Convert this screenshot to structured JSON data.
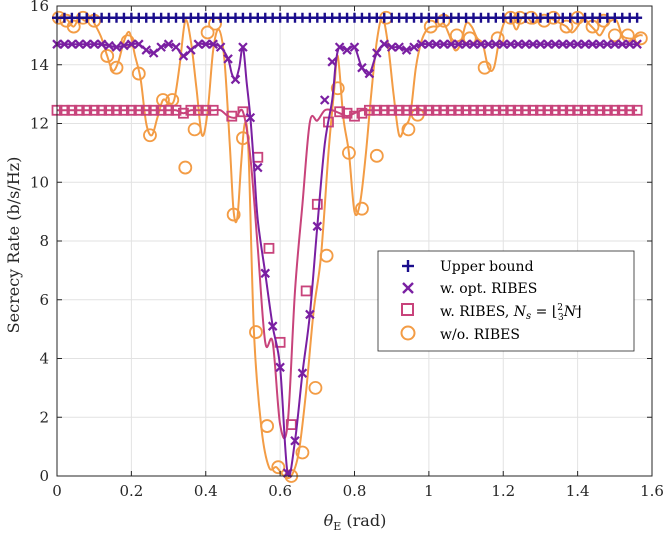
{
  "chart_data": {
    "type": "line",
    "xlabel": "θ_E (rad)",
    "xlabel_main": "θ",
    "xlabel_sub": "E",
    "xlabel_unit": " (rad)",
    "ylabel": "Secrecy Rate (b/s/Hz)",
    "xlim": [
      0,
      1.6
    ],
    "ylim": [
      0,
      16
    ],
    "xticks": [
      0,
      0.2,
      0.4,
      0.6,
      0.8,
      1,
      1.2,
      1.4,
      1.6
    ],
    "xtick_labels": [
      "0",
      "0.2",
      "0.4",
      "0.6",
      "0.8",
      "1",
      "1.2",
      "1.4",
      "1.6"
    ],
    "yticks": [
      0,
      2,
      4,
      6,
      8,
      10,
      12,
      14,
      16
    ],
    "ytick_labels": [
      "0",
      "2",
      "4",
      "6",
      "8",
      "10",
      "12",
      "14",
      "16"
    ],
    "grid": true,
    "legend_position": "center-right",
    "series": [
      {
        "name": "Upper bound",
        "color": "#1a0d8c",
        "marker": "plus",
        "x": [
          0,
          0.02,
          0.04,
          0.06,
          0.08,
          0.1,
          0.12,
          0.14,
          0.16,
          0.18,
          0.2,
          0.22,
          0.24,
          0.26,
          0.28,
          0.3,
          0.32,
          0.34,
          0.36,
          0.38,
          0.4,
          0.42,
          0.44,
          0.46,
          0.48,
          0.5,
          0.52,
          0.54,
          0.56,
          0.58,
          0.6,
          0.62,
          0.64,
          0.66,
          0.68,
          0.7,
          0.72,
          0.74,
          0.76,
          0.78,
          0.8,
          0.82,
          0.84,
          0.86,
          0.88,
          0.9,
          0.92,
          0.94,
          0.96,
          0.98,
          1.0,
          1.02,
          1.04,
          1.06,
          1.08,
          1.1,
          1.12,
          1.14,
          1.16,
          1.18,
          1.2,
          1.22,
          1.24,
          1.26,
          1.28,
          1.3,
          1.32,
          1.34,
          1.36,
          1.38,
          1.4,
          1.42,
          1.44,
          1.46,
          1.48,
          1.5,
          1.52,
          1.54,
          1.56
        ],
        "y": [
          15.6,
          15.6,
          15.6,
          15.6,
          15.6,
          15.6,
          15.6,
          15.6,
          15.6,
          15.6,
          15.6,
          15.6,
          15.6,
          15.6,
          15.6,
          15.6,
          15.6,
          15.6,
          15.6,
          15.6,
          15.6,
          15.6,
          15.6,
          15.6,
          15.6,
          15.6,
          15.6,
          15.6,
          15.6,
          15.6,
          15.6,
          15.6,
          15.6,
          15.6,
          15.6,
          15.6,
          15.6,
          15.6,
          15.6,
          15.6,
          15.6,
          15.6,
          15.6,
          15.6,
          15.6,
          15.6,
          15.6,
          15.6,
          15.6,
          15.6,
          15.6,
          15.6,
          15.6,
          15.6,
          15.6,
          15.6,
          15.6,
          15.6,
          15.6,
          15.6,
          15.6,
          15.6,
          15.6,
          15.6,
          15.6,
          15.6,
          15.6,
          15.6,
          15.6,
          15.6,
          15.6,
          15.6,
          15.6,
          15.6,
          15.6,
          15.6,
          15.6,
          15.6,
          15.6
        ]
      },
      {
        "name": "w. opt. RIBES",
        "color": "#7a1fa2",
        "marker": "x",
        "x": [
          0,
          0.02,
          0.04,
          0.06,
          0.08,
          0.1,
          0.12,
          0.14,
          0.16,
          0.18,
          0.2,
          0.22,
          0.24,
          0.26,
          0.28,
          0.3,
          0.32,
          0.34,
          0.36,
          0.38,
          0.4,
          0.42,
          0.44,
          0.46,
          0.47,
          0.48,
          0.49,
          0.5,
          0.51,
          0.52,
          0.53,
          0.54,
          0.56,
          0.58,
          0.6,
          0.62,
          0.64,
          0.66,
          0.68,
          0.7,
          0.72,
          0.74,
          0.75,
          0.76,
          0.78,
          0.8,
          0.82,
          0.84,
          0.86,
          0.88,
          0.9,
          0.92,
          0.94,
          0.96,
          0.98,
          1.0,
          1.02,
          1.04,
          1.06,
          1.08,
          1.1,
          1.12,
          1.14,
          1.16,
          1.18,
          1.2,
          1.22,
          1.24,
          1.26,
          1.28,
          1.3,
          1.32,
          1.34,
          1.36,
          1.38,
          1.4,
          1.42,
          1.44,
          1.46,
          1.48,
          1.5,
          1.52,
          1.54,
          1.56
        ],
        "y": [
          14.7,
          14.7,
          14.7,
          14.7,
          14.7,
          14.7,
          14.7,
          14.65,
          14.6,
          14.65,
          14.7,
          14.7,
          14.5,
          14.4,
          14.6,
          14.7,
          14.6,
          14.3,
          14.5,
          14.7,
          14.7,
          14.7,
          14.6,
          14.2,
          13.7,
          13.5,
          13.9,
          14.6,
          13.4,
          12.2,
          10.5,
          8.7,
          6.9,
          5.1,
          3.7,
          0.1,
          1.2,
          3.5,
          5.5,
          8.5,
          11.3,
          12.8,
          14.1,
          14.6,
          14.5,
          14.6,
          13.9,
          13.7,
          14.4,
          14.7,
          14.6,
          14.6,
          14.5,
          14.6,
          14.7,
          14.7,
          14.7,
          14.7,
          14.7,
          14.7,
          14.7,
          14.7,
          14.7,
          14.7,
          14.7,
          14.7,
          14.7,
          14.7,
          14.7,
          14.7,
          14.7,
          14.7,
          14.7,
          14.7,
          14.7,
          14.7,
          14.7,
          14.7,
          14.7,
          14.7,
          14.7,
          14.7,
          14.7,
          14.7
        ],
        "marker_x": [
          0,
          0.02,
          0.04,
          0.06,
          0.08,
          0.1,
          0.12,
          0.14,
          0.16,
          0.18,
          0.2,
          0.22,
          0.24,
          0.26,
          0.28,
          0.3,
          0.32,
          0.34,
          0.36,
          0.38,
          0.4,
          0.42,
          0.44,
          0.46,
          0.48,
          0.5,
          0.52,
          0.54,
          0.56,
          0.58,
          0.6,
          0.62,
          0.64,
          0.66,
          0.68,
          0.7,
          0.72,
          0.74,
          0.76,
          0.78,
          0.8,
          0.82,
          0.84,
          0.86,
          0.88,
          0.9,
          0.92,
          0.94,
          0.96,
          0.98,
          1.0,
          1.02,
          1.04,
          1.06,
          1.08,
          1.1,
          1.12,
          1.14,
          1.16,
          1.18,
          1.2,
          1.22,
          1.24,
          1.26,
          1.28,
          1.3,
          1.32,
          1.34,
          1.36,
          1.38,
          1.4,
          1.42,
          1.44,
          1.46,
          1.48,
          1.5,
          1.52,
          1.54,
          1.56
        ],
        "marker_y": [
          14.7,
          14.7,
          14.7,
          14.7,
          14.7,
          14.7,
          14.7,
          14.65,
          14.6,
          14.65,
          14.7,
          14.7,
          14.5,
          14.4,
          14.6,
          14.7,
          14.6,
          14.3,
          14.5,
          14.7,
          14.7,
          14.7,
          14.6,
          14.2,
          13.5,
          14.6,
          12.2,
          10.5,
          6.9,
          5.1,
          3.7,
          0.1,
          1.2,
          3.5,
          5.5,
          8.5,
          12.8,
          14.1,
          14.6,
          14.5,
          14.6,
          13.9,
          13.7,
          14.4,
          14.7,
          14.6,
          14.6,
          14.5,
          14.6,
          14.7,
          14.7,
          14.7,
          14.7,
          14.7,
          14.7,
          14.7,
          14.7,
          14.7,
          14.7,
          14.7,
          14.7,
          14.7,
          14.7,
          14.7,
          14.7,
          14.7,
          14.7,
          14.7,
          14.7,
          14.7,
          14.7,
          14.7,
          14.7,
          14.7,
          14.7,
          14.7,
          14.7,
          14.7,
          14.7
        ]
      },
      {
        "name": "w. RIBES, N_s = ⌊2/3 N⌋",
        "color": "#c8437b",
        "marker": "square",
        "x": [
          0,
          0.02,
          0.04,
          0.06,
          0.08,
          0.1,
          0.12,
          0.14,
          0.16,
          0.18,
          0.2,
          0.22,
          0.24,
          0.26,
          0.28,
          0.3,
          0.32,
          0.34,
          0.36,
          0.38,
          0.4,
          0.42,
          0.44,
          0.46,
          0.48,
          0.5,
          0.52,
          0.54,
          0.56,
          0.58,
          0.6,
          0.62,
          0.64,
          0.66,
          0.68,
          0.7,
          0.72,
          0.74,
          0.76,
          0.78,
          0.8,
          0.82,
          0.84,
          0.86,
          0.88,
          0.9,
          0.92,
          0.94,
          0.96,
          0.98,
          1.0,
          1.02,
          1.04,
          1.06,
          1.08,
          1.1,
          1.12,
          1.14,
          1.16,
          1.18,
          1.2,
          1.22,
          1.24,
          1.26,
          1.28,
          1.3,
          1.32,
          1.34,
          1.36,
          1.38,
          1.4,
          1.42,
          1.44,
          1.46,
          1.48,
          1.5,
          1.52,
          1.54,
          1.56
        ],
        "y": [
          12.45,
          12.45,
          12.45,
          12.45,
          12.45,
          12.45,
          12.45,
          12.45,
          12.45,
          12.45,
          12.45,
          12.45,
          12.45,
          12.45,
          12.45,
          12.45,
          12.45,
          12.35,
          12.45,
          12.45,
          12.45,
          12.45,
          12.45,
          12.25,
          12.2,
          12.4,
          10.85,
          7.75,
          4.55,
          4.55,
          1.75,
          1.75,
          6.3,
          9.25,
          12.05,
          12.1,
          12.45,
          12.45,
          12.35,
          12.25,
          12.35,
          12.45,
          12.45,
          12.45,
          12.45,
          12.45,
          12.45,
          12.45,
          12.45,
          12.45,
          12.45,
          12.45,
          12.45,
          12.45,
          12.45,
          12.45,
          12.45,
          12.45,
          12.45,
          12.45,
          12.45,
          12.45,
          12.45,
          12.45,
          12.45,
          12.45,
          12.45,
          12.45,
          12.45,
          12.45,
          12.45,
          12.45,
          12.45,
          12.45,
          12.45,
          12.45,
          12.45,
          12.45,
          12.45
        ],
        "marker_x": [
          0,
          0.02,
          0.04,
          0.06,
          0.08,
          0.1,
          0.12,
          0.14,
          0.16,
          0.18,
          0.2,
          0.22,
          0.24,
          0.26,
          0.28,
          0.3,
          0.32,
          0.34,
          0.36,
          0.38,
          0.4,
          0.42,
          0.47,
          0.5,
          0.54,
          0.57,
          0.6,
          0.63,
          0.67,
          0.7,
          0.73,
          0.76,
          0.78,
          0.8,
          0.82,
          0.84,
          0.86,
          0.88,
          0.9,
          0.92,
          0.94,
          0.96,
          0.98,
          1.0,
          1.02,
          1.04,
          1.06,
          1.08,
          1.1,
          1.12,
          1.14,
          1.16,
          1.18,
          1.2,
          1.22,
          1.24,
          1.26,
          1.28,
          1.3,
          1.32,
          1.34,
          1.36,
          1.38,
          1.4,
          1.42,
          1.44,
          1.46,
          1.48,
          1.5,
          1.52,
          1.54,
          1.56
        ],
        "marker_y": [
          12.45,
          12.45,
          12.45,
          12.45,
          12.45,
          12.45,
          12.45,
          12.45,
          12.45,
          12.45,
          12.45,
          12.45,
          12.45,
          12.45,
          12.45,
          12.45,
          12.45,
          12.35,
          12.45,
          12.45,
          12.45,
          12.45,
          12.25,
          12.4,
          10.85,
          7.75,
          4.55,
          1.75,
          6.3,
          9.25,
          12.05,
          12.4,
          12.35,
          12.25,
          12.35,
          12.45,
          12.45,
          12.45,
          12.45,
          12.45,
          12.45,
          12.45,
          12.45,
          12.45,
          12.45,
          12.45,
          12.45,
          12.45,
          12.45,
          12.45,
          12.45,
          12.45,
          12.45,
          12.45,
          12.45,
          12.45,
          12.45,
          12.45,
          12.45,
          12.45,
          12.45,
          12.45,
          12.45,
          12.45,
          12.45,
          12.45,
          12.45,
          12.45,
          12.45,
          12.45,
          12.45,
          12.45
        ]
      },
      {
        "name": "w/o. RIBES",
        "color": "#f39c45",
        "marker": "circle",
        "x": [
          0,
          0.015,
          0.03,
          0.045,
          0.06,
          0.075,
          0.09,
          0.105,
          0.12,
          0.135,
          0.15,
          0.165,
          0.18,
          0.195,
          0.21,
          0.225,
          0.24,
          0.255,
          0.27,
          0.285,
          0.3,
          0.315,
          0.33,
          0.345,
          0.36,
          0.375,
          0.39,
          0.405,
          0.42,
          0.435,
          0.45,
          0.465,
          0.475,
          0.485,
          0.495,
          0.505,
          0.515,
          0.53,
          0.55,
          0.57,
          0.59,
          0.61,
          0.63,
          0.65,
          0.67,
          0.69,
          0.71,
          0.73,
          0.745,
          0.755,
          0.77,
          0.785,
          0.8,
          0.815,
          0.83,
          0.845,
          0.86,
          0.875,
          0.89,
          0.905,
          0.92,
          0.935,
          0.95,
          0.965,
          0.98,
          0.995,
          1.01,
          1.025,
          1.04,
          1.055,
          1.07,
          1.085,
          1.1,
          1.115,
          1.13,
          1.145,
          1.16,
          1.175,
          1.19,
          1.205,
          1.22,
          1.235,
          1.25,
          1.265,
          1.28,
          1.295,
          1.31,
          1.325,
          1.34,
          1.355,
          1.37,
          1.385,
          1.4,
          1.415,
          1.43,
          1.445,
          1.46,
          1.475,
          1.49,
          1.505,
          1.52,
          1.535,
          1.55,
          1.565,
          1.575
        ],
        "y": [
          15.5,
          15.7,
          15.5,
          15.3,
          15.6,
          15.5,
          15.6,
          15.3,
          14.9,
          14.3,
          13.8,
          14.1,
          14.8,
          15.1,
          14.3,
          13.5,
          12.0,
          11.6,
          12.2,
          12.8,
          12.7,
          12.8,
          14.0,
          15.5,
          14.8,
          13.2,
          11.6,
          12.4,
          14.5,
          15.2,
          14.2,
          11.2,
          9.0,
          8.8,
          10.6,
          12.0,
          11.0,
          4.8,
          1.6,
          0.3,
          0.3,
          0.0,
          0.0,
          0.8,
          2.9,
          5.6,
          7.5,
          11.0,
          13.1,
          14.3,
          12.2,
          11.0,
          9.0,
          9.3,
          10.9,
          13.0,
          14.8,
          15.6,
          14.7,
          13.0,
          11.6,
          11.9,
          12.3,
          13.9,
          14.8,
          15.2,
          15.3,
          15.3,
          15.4,
          15.0,
          14.5,
          14.7,
          15.4,
          15.3,
          14.9,
          14.7,
          13.9,
          13.9,
          14.9,
          15.5,
          15.6,
          15.2,
          15.6,
          15.6,
          15.4,
          15.5,
          15.6,
          15.6,
          15.5,
          15.4,
          15.3,
          15.1,
          15.3,
          15.6,
          15.4,
          15.2,
          15.0,
          15.3,
          15.5,
          15.5,
          15.0,
          14.9,
          14.9,
          15.0,
          15.0
        ],
        "marker_x": [
          0.005,
          0.025,
          0.045,
          0.07,
          0.1,
          0.135,
          0.16,
          0.19,
          0.22,
          0.25,
          0.285,
          0.31,
          0.345,
          0.37,
          0.405,
          0.425,
          0.475,
          0.5,
          0.535,
          0.565,
          0.595,
          0.63,
          0.66,
          0.695,
          0.725,
          0.755,
          0.785,
          0.82,
          0.86,
          0.885,
          0.945,
          0.97,
          1.005,
          1.04,
          1.075,
          1.11,
          1.15,
          1.185,
          1.22,
          1.245,
          1.275,
          1.31,
          1.335,
          1.37,
          1.4,
          1.44,
          1.47,
          1.5,
          1.535,
          1.57
        ],
        "marker_y": [
          15.6,
          15.5,
          15.3,
          15.6,
          15.5,
          14.3,
          13.9,
          14.8,
          13.7,
          11.6,
          12.8,
          12.8,
          10.5,
          11.8,
          15.1,
          15.4,
          8.9,
          11.5,
          4.9,
          1.7,
          0.3,
          0.0,
          0.8,
          3.0,
          7.5,
          13.2,
          11.0,
          9.1,
          10.9,
          15.6,
          11.8,
          12.3,
          15.3,
          15.5,
          15.0,
          14.9,
          13.9,
          14.9,
          15.6,
          15.6,
          15.6,
          15.5,
          15.6,
          15.3,
          15.6,
          15.3,
          15.5,
          15.0,
          15.0,
          14.9
        ]
      }
    ]
  },
  "legend": {
    "items": [
      {
        "label": "Upper bound"
      },
      {
        "label": "w. opt. RIBES"
      },
      {
        "label_prefix": "w. RIBES, ",
        "label_N": "N",
        "label_s": "s",
        "label_eq": " = ",
        "label_num": "2",
        "label_den": "3",
        "label_N2": "N"
      },
      {
        "label": "w/o. RIBES"
      }
    ]
  }
}
